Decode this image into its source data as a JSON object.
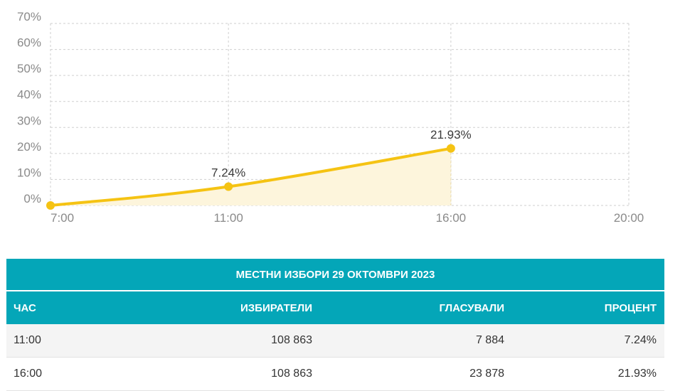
{
  "chart_data": {
    "type": "area",
    "x": [
      "7:00",
      "11:00",
      "16:00"
    ],
    "y": [
      0,
      7.24,
      21.93
    ],
    "data_labels": [
      "",
      "7.24%",
      "21.93%"
    ],
    "x_ticks": [
      "7:00",
      "11:00",
      "16:00",
      "20:00"
    ],
    "x_hours": [
      7,
      11,
      16,
      20
    ],
    "y_ticks": [
      "0%",
      "10%",
      "20%",
      "30%",
      "40%",
      "50%",
      "60%",
      "70%"
    ],
    "ylim": [
      0,
      70
    ],
    "xlim_hours": [
      7,
      20
    ],
    "grid": true,
    "title": "",
    "xlabel": "",
    "ylabel": "",
    "colors": {
      "line": "#f5c313",
      "fill": "#fdf5dc",
      "grid": "#cfcfcf"
    }
  },
  "table": {
    "title": "МЕСТНИ ИЗБОРИ 29 ОКТОМВРИ 2023",
    "headers": [
      "ЧАС",
      "ИЗБИРАТЕЛИ",
      "ГЛАСУВАЛИ",
      "ПРОЦЕНТ"
    ],
    "rows": [
      [
        "11:00",
        "108 863",
        "7 884",
        "7.24%"
      ],
      [
        "16:00",
        "108 863",
        "23 878",
        "21.93%"
      ]
    ],
    "colors": {
      "header_bg": "#04a6b8",
      "header_text": "#ffffff"
    }
  }
}
